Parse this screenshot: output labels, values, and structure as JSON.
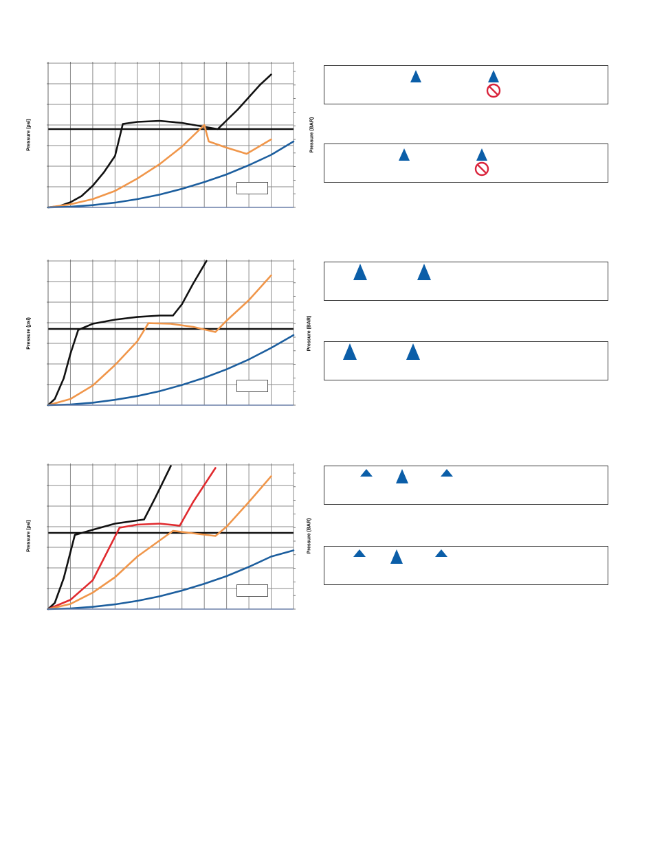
{
  "colors": {
    "black": "#111111",
    "orange": "#f0964a",
    "blue": "#1c5e9e",
    "red": "#e02a2e",
    "grid": "#8a8a8a",
    "triangle": "#0b5ea8",
    "nosign": "#d9233b"
  },
  "labels": {
    "y_left": "Pressure (psi)",
    "y_right": "Pressure (BAR)"
  },
  "chart_data": [
    {
      "type": "line",
      "ylabel": "Pressure (psi)",
      "ylabel_right": "Pressure (BAR)",
      "xlim": [
        0,
        11
      ],
      "ylim": [
        0,
        7
      ],
      "grid": true,
      "reference_line_y": 3.8,
      "series": [
        {
          "color": "black",
          "x": [
            0,
            0.5,
            1,
            1.5,
            2,
            2.5,
            3,
            3.35,
            4,
            5,
            6,
            7.6,
            8.5,
            9.5,
            10
          ],
          "y": [
            0,
            0.06,
            0.25,
            0.55,
            1.05,
            1.7,
            2.5,
            4.05,
            4.15,
            4.2,
            4.1,
            3.8,
            4.75,
            5.95,
            6.45
          ]
        },
        {
          "color": "orange",
          "x": [
            0,
            1,
            2,
            3,
            4,
            5,
            6,
            7,
            7.2,
            8,
            8.9,
            10
          ],
          "y": [
            0,
            0.15,
            0.4,
            0.8,
            1.4,
            2.1,
            2.95,
            4.0,
            3.2,
            2.9,
            2.6,
            3.3
          ]
        },
        {
          "color": "blue",
          "x": [
            0,
            1,
            2,
            3,
            4,
            5,
            6,
            7,
            8,
            9,
            10,
            11
          ],
          "y": [
            0,
            0.03,
            0.11,
            0.23,
            0.4,
            0.62,
            0.9,
            1.23,
            1.6,
            2.05,
            2.55,
            3.2
          ]
        }
      ]
    },
    {
      "type": "line",
      "ylabel": "Pressure (psi)",
      "ylabel_right": "Pressure (BAR)",
      "xlim": [
        0,
        11
      ],
      "ylim": [
        0,
        7
      ],
      "grid": true,
      "reference_line_y": 3.7,
      "series": [
        {
          "color": "black",
          "x": [
            0,
            0.3,
            0.7,
            1,
            1.35,
            2,
            3,
            4,
            5,
            5.6,
            6,
            6.5,
            7.1
          ],
          "y": [
            0,
            0.3,
            1.3,
            2.5,
            3.65,
            3.95,
            4.15,
            4.28,
            4.35,
            4.35,
            4.9,
            5.9,
            7.0
          ]
        },
        {
          "color": "orange",
          "x": [
            0,
            1,
            2,
            3,
            4,
            4.5,
            5.5,
            6.5,
            7.5,
            8,
            9,
            10
          ],
          "y": [
            0,
            0.3,
            0.95,
            1.95,
            3.1,
            3.98,
            3.95,
            3.8,
            3.55,
            4.1,
            5.1,
            6.3
          ]
        },
        {
          "color": "blue",
          "x": [
            0,
            1,
            2,
            3,
            4,
            5,
            6,
            7,
            8,
            9,
            10,
            11
          ],
          "y": [
            0,
            0.03,
            0.12,
            0.26,
            0.44,
            0.68,
            0.98,
            1.33,
            1.74,
            2.22,
            2.78,
            3.4
          ]
        }
      ]
    },
    {
      "type": "line",
      "ylabel": "Pressure (psi)",
      "ylabel_right": "Pressure (BAR)",
      "xlim": [
        0,
        11
      ],
      "ylim": [
        0,
        7
      ],
      "grid": true,
      "reference_line_y": 3.7,
      "series": [
        {
          "color": "black",
          "x": [
            0,
            0.3,
            0.7,
            1.2,
            2,
            3,
            4.3,
            4.8,
            5.5
          ],
          "y": [
            0,
            0.3,
            1.5,
            3.6,
            3.85,
            4.15,
            4.35,
            5.4,
            6.95
          ]
        },
        {
          "color": "red",
          "x": [
            0,
            1,
            2,
            3.2,
            4,
            5,
            5.9,
            6.5,
            7.5
          ],
          "y": [
            0,
            0.45,
            1.4,
            3.95,
            4.1,
            4.15,
            4.05,
            5.2,
            6.85
          ]
        },
        {
          "color": "orange",
          "x": [
            0,
            1,
            2,
            3,
            4,
            5.6,
            7.5,
            8,
            9,
            10
          ],
          "y": [
            0,
            0.25,
            0.8,
            1.55,
            2.55,
            3.8,
            3.55,
            4.0,
            5.2,
            6.45
          ]
        },
        {
          "color": "blue",
          "x": [
            0,
            1,
            2,
            3,
            4,
            5,
            6,
            7,
            8,
            9,
            10,
            11
          ],
          "y": [
            0,
            0.03,
            0.11,
            0.23,
            0.4,
            0.62,
            0.9,
            1.23,
            1.6,
            2.05,
            2.55,
            2.85
          ]
        }
      ]
    }
  ]
}
